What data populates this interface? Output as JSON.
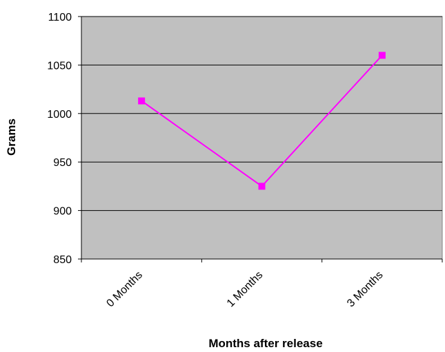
{
  "chart_data": {
    "type": "line",
    "categories": [
      "0 Months",
      "1 Months",
      "3 Months"
    ],
    "series": [
      {
        "values": [
          1013,
          925,
          1060
        ]
      }
    ],
    "title": "",
    "xlabel": "Months after release",
    "ylabel": "Grams",
    "ylim": [
      850,
      1100
    ],
    "yticks": [
      850,
      900,
      950,
      1000,
      1050,
      1100
    ],
    "grid": true,
    "legend": "none",
    "colors": {
      "plot_background": "#C0C0C0",
      "series_line": "#FF00FF",
      "gridline": "#000000"
    },
    "marker": "square"
  }
}
